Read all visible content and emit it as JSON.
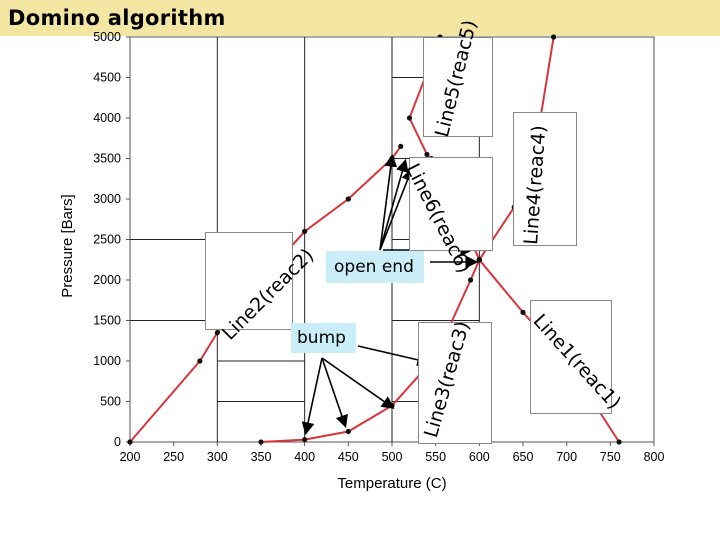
{
  "header": {
    "title": "Domino algorithm"
  },
  "annotations": {
    "open_end": "open end",
    "bump": "bump"
  },
  "colors": {
    "title_bar": "#f3e6a3",
    "curve": "#d9343a",
    "point": "#111111",
    "callout": "#c9eef7"
  },
  "chart_data": {
    "type": "line",
    "xlabel": "Temperature (C)",
    "ylabel": "Pressure [Bars]",
    "xlim": [
      200,
      800
    ],
    "ylim": [
      0,
      5000
    ],
    "x_ticks": [
      200,
      250,
      300,
      350,
      400,
      450,
      500,
      550,
      600,
      650,
      700,
      750,
      800
    ],
    "y_ticks": [
      0,
      500,
      1000,
      1500,
      2000,
      2500,
      3000,
      3500,
      4000,
      4500,
      5000
    ],
    "series": [
      {
        "name": "Line1(reac1)",
        "points": [
          [
            600,
            2250
          ],
          [
            650,
            1600
          ],
          [
            700,
            1000
          ],
          [
            760,
            0
          ]
        ]
      },
      {
        "name": "Line2(reac2)",
        "points": [
          [
            200,
            0
          ],
          [
            280,
            1000
          ],
          [
            300,
            1350
          ],
          [
            350,
            2000
          ],
          [
            400,
            2600
          ],
          [
            450,
            3000
          ],
          [
            500,
            3500
          ],
          [
            510,
            3650
          ]
        ]
      },
      {
        "name": "Line3(reac3)",
        "points": [
          [
            350,
            0
          ],
          [
            400,
            30
          ],
          [
            450,
            130
          ],
          [
            500,
            450
          ],
          [
            550,
            1050
          ],
          [
            590,
            2000
          ],
          [
            600,
            2250
          ]
        ]
      },
      {
        "name": "Line4(reac4)",
        "points": [
          [
            600,
            2250
          ],
          [
            640,
            2900
          ],
          [
            660,
            3500
          ],
          [
            670,
            4000
          ],
          [
            685,
            5000
          ]
        ]
      },
      {
        "name": "Line5(reac5)",
        "points": [
          [
            600,
            2250
          ],
          [
            590,
            2500
          ],
          [
            565,
            3000
          ],
          [
            540,
            3550
          ],
          [
            520,
            4000
          ],
          [
            545,
            4700
          ],
          [
            555,
            5000
          ]
        ]
      },
      {
        "name": "Line6(reac6)",
        "points": [
          [
            545,
            3500
          ],
          [
            560,
            3000
          ],
          [
            580,
            2500
          ]
        ]
      }
    ]
  }
}
